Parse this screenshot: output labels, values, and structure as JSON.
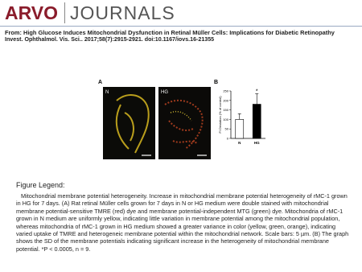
{
  "header": {
    "logo_main": "ARVO",
    "logo_sub": "JOURNALS"
  },
  "title": "From: High Glucose Induces Mitochondrial Dysfunction in Retinal Müller Cells: Implications for Diabetic Retinopathy",
  "citation": "Invest. Ophthalmol. Vis. Sci.. 2017;58(7):2915-2921. doi:10.1167/iovs.16-21355",
  "figure": {
    "panel_a": "A",
    "panel_b": "B",
    "image_labels": [
      "N",
      "HG"
    ]
  },
  "chart_data": {
    "type": "bar",
    "ylabel": "FI Deviation (% of control)",
    "categories": [
      "N",
      "HG"
    ],
    "values": [
      100,
      180
    ],
    "errors": [
      30,
      55
    ],
    "colors": [
      "#ffffff",
      "#000000"
    ],
    "annotation": "*",
    "ylim": [
      0,
      250
    ],
    "yticks": [
      0,
      50,
      100,
      150,
      200,
      250
    ]
  },
  "legend": {
    "heading": "Figure Legend:",
    "text": "Mitochondrial membrane potential heterogeneity. Increase in mitochondrial membrane potential heterogeneity of rMC-1 grown in HG for 7 days. (A) Rat retinal Müller cells grown for 7 days in N or HG medium were double stained with mitochondrial membrane potential-sensitive TMRE (red) dye and membrane potential-independent MTG (green) dye. Mitochondria of rMC-1 grown in N medium are uniformly yellow, indicating little variation in membrane potential among the mitochondrial population, whereas mitochondria of rMC-1 grown in HG medium showed a greater variance in color (yellow, green, orange), indicating varied uptake of TMRE and heterogeneic membrane potential within the mitochondrial network. Scale bars: 5 µm. (B) The graph shows the SD of the membrane potentials indicating significant increase in the heterogeneity of mitochondrial membrane potential. *P < 0.0005, n = 9."
  }
}
